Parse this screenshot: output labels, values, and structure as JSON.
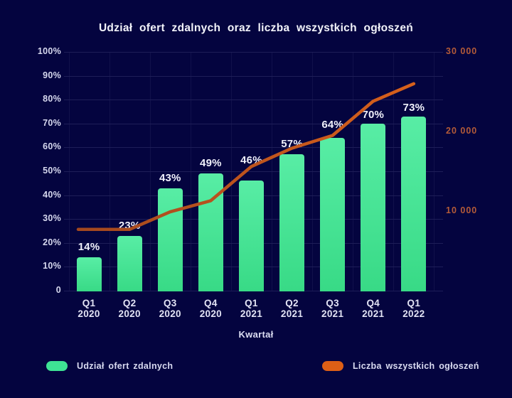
{
  "title": "Udział ofert zdalnych oraz liczba wszystkich ogłoszeń",
  "x_axis_label": "Kwartał",
  "colors": {
    "background": "#04043f",
    "grid": "#1e1e58",
    "axis_text": "#d6d8ee",
    "right_axis_text": "#b45b38",
    "title_text": "#f2f3fa",
    "bar_top": "#58eda5",
    "bar_bottom": "#38da86",
    "line_start": "#a3481f",
    "line_end": "#d7601b",
    "legend_bar_swatch": "#3ee294",
    "legend_line_swatch": "#dd5f16"
  },
  "legend": {
    "items": [
      {
        "label": "Udział ofert zdalnych",
        "swatch": "bar-swatch",
        "color": "#3ee294"
      },
      {
        "label": "Liczba wszystkich ogłoszeń",
        "swatch": "line-swatch",
        "color": "#dd5f16"
      }
    ]
  },
  "chart_data": {
    "type": "combo-bar-line",
    "title": "Udział ofert zdalnych oraz liczba wszystkich ogłoszeń",
    "xlabel": "Kwartał",
    "categories": [
      "Q1 2020",
      "Q2 2020",
      "Q3 2020",
      "Q4 2020",
      "Q1 2021",
      "Q2 2021",
      "Q3 2021",
      "Q4 2021",
      "Q1 2022"
    ],
    "series": [
      {
        "name": "Udział ofert zdalnych",
        "type": "bar",
        "axis": "left",
        "values": [
          14,
          23,
          43,
          49,
          46,
          57,
          64,
          70,
          73
        ],
        "data_labels": [
          "14%",
          "23%",
          "43%",
          "49%",
          "46%",
          "57%",
          "64%",
          "70%",
          "73%"
        ]
      },
      {
        "name": "Liczba wszystkich ogłoszeń",
        "type": "line",
        "axis": "right",
        "values": [
          7700,
          7700,
          9900,
          11300,
          15600,
          17900,
          19500,
          23800,
          26000
        ]
      }
    ],
    "left_axis": {
      "min": 0,
      "max": 100,
      "ticks": [
        "100%",
        "90%",
        "80%",
        "70%",
        "60%",
        "50%",
        "40%",
        "30%",
        "20%",
        "10%",
        "0"
      ]
    },
    "right_axis": {
      "min": 0,
      "max": 30000,
      "ticks": [
        {
          "label": "30 000",
          "value": 30000
        },
        {
          "label": "20 000",
          "value": 20000
        },
        {
          "label": "10 000",
          "value": 10000
        }
      ]
    },
    "grid": true,
    "legend_position": "bottom",
    "bar_label_gaps": [
      5,
      5,
      5,
      5,
      19,
      5,
      9,
      3,
      3
    ]
  }
}
